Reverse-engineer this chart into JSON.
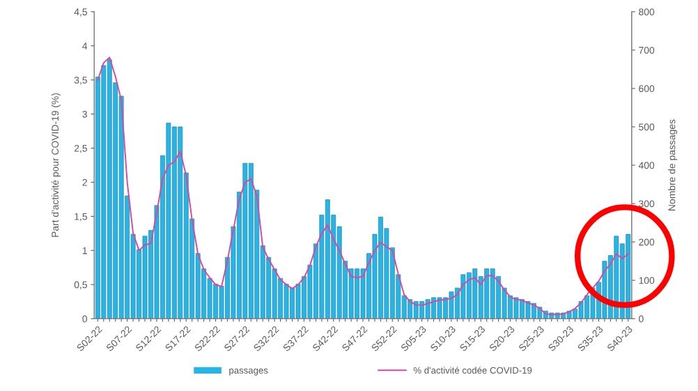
{
  "chart_data": {
    "type": "bar",
    "ylabel": "Part d'activité pour COVID-19 (%)",
    "y2label": "Nombre de passages",
    "categories": [
      "S02-22",
      null,
      null,
      null,
      null,
      "S07-22",
      null,
      null,
      null,
      null,
      "S12-22",
      null,
      null,
      null,
      null,
      "S17-22",
      null,
      null,
      null,
      null,
      "S22-22",
      null,
      null,
      null,
      null,
      "S27-22",
      null,
      null,
      null,
      null,
      "S32-22",
      null,
      null,
      null,
      null,
      "S37-22",
      null,
      null,
      null,
      null,
      "S42-22",
      null,
      null,
      null,
      null,
      "S47-22",
      null,
      null,
      null,
      null,
      "S52-22",
      null,
      null,
      null,
      null,
      "S05-23",
      null,
      null,
      null,
      null,
      "S10-23",
      null,
      null,
      null,
      null,
      "S15-23",
      null,
      null,
      null,
      null,
      "S20-23",
      null,
      null,
      null,
      null,
      "S25-23",
      null,
      null,
      null,
      null,
      "S30-23",
      null,
      null,
      null,
      null,
      "S35-23",
      null,
      null,
      null,
      null,
      "S40-23"
    ],
    "series": [
      {
        "name": "passages",
        "axis": "y2",
        "color": "#27b4e6",
        "values": [
          630,
          660,
          675,
          615,
          580,
          320,
          220,
          180,
          215,
          230,
          295,
          425,
          510,
          500,
          500,
          380,
          260,
          170,
          130,
          105,
          90,
          85,
          160,
          240,
          330,
          405,
          405,
          335,
          190,
          160,
          130,
          105,
          90,
          80,
          90,
          110,
          140,
          195,
          270,
          310,
          270,
          240,
          150,
          130,
          130,
          130,
          170,
          220,
          265,
          235,
          185,
          115,
          60,
          50,
          45,
          45,
          50,
          55,
          55,
          55,
          70,
          80,
          115,
          120,
          130,
          110,
          130,
          130,
          110,
          80,
          60,
          55,
          50,
          45,
          40,
          30,
          20,
          15,
          15,
          15,
          20,
          25,
          45,
          60,
          80,
          95,
          150,
          165,
          215,
          195,
          220
        ]
      },
      {
        "name": "% d'activité codée COVID-19",
        "type": "line",
        "axis": "y",
        "color": "#d9479e",
        "values": [
          3.5,
          3.75,
          3.83,
          3.55,
          3.2,
          2.0,
          1.25,
          1.0,
          1.08,
          1.1,
          1.55,
          2.05,
          2.25,
          2.3,
          2.45,
          2.1,
          1.45,
          0.95,
          0.72,
          0.6,
          0.5,
          0.47,
          0.85,
          1.3,
          1.75,
          2.0,
          2.05,
          1.8,
          1.05,
          0.87,
          0.72,
          0.57,
          0.5,
          0.44,
          0.5,
          0.6,
          0.78,
          1.05,
          1.25,
          1.37,
          1.17,
          1.0,
          0.8,
          0.62,
          0.6,
          0.62,
          0.82,
          1.0,
          1.12,
          1.05,
          1.0,
          0.65,
          0.35,
          0.25,
          0.2,
          0.2,
          0.22,
          0.25,
          0.27,
          0.28,
          0.3,
          0.35,
          0.5,
          0.57,
          0.6,
          0.5,
          0.63,
          0.63,
          0.55,
          0.42,
          0.32,
          0.28,
          0.27,
          0.23,
          0.2,
          0.15,
          0.07,
          0.06,
          0.06,
          0.07,
          0.1,
          0.15,
          0.23,
          0.35,
          0.45,
          0.55,
          0.7,
          0.8,
          0.95,
          0.88,
          0.95
        ]
      }
    ],
    "ylim": [
      0,
      4.5
    ],
    "yticks": [
      0,
      {
        "value": 0.5,
        "label": "0,5"
      },
      1,
      {
        "value": 1.5,
        "label": "1,5"
      },
      2,
      {
        "value": 2.5,
        "label": "2,5"
      },
      3,
      {
        "value": 3.5,
        "label": "3,5"
      },
      4,
      {
        "value": 4.5,
        "label": "4,5"
      }
    ],
    "y2lim": [
      0,
      800
    ],
    "y2ticks": [
      0,
      100,
      200,
      300,
      400,
      500,
      600,
      700,
      800
    ],
    "legend": "bottom",
    "grid": false
  }
}
